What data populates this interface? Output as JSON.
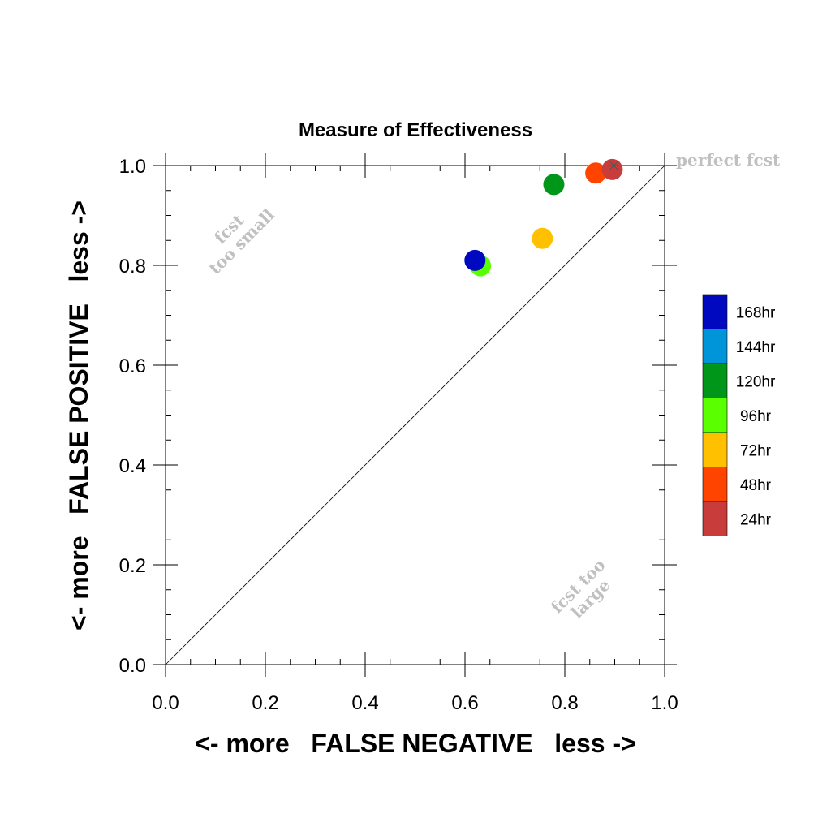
{
  "chart_data": {
    "type": "scatter",
    "title": "Measure of Effectiveness",
    "xlabel": "<- more   FALSE NEGATIVE   less ->",
    "ylabel": "<- more   FALSE POSITIVE   less ->",
    "xlim": [
      0,
      1
    ],
    "ylim": [
      0,
      1
    ],
    "xticks": [
      "0.0",
      "0.2",
      "0.4",
      "0.6",
      "0.8",
      "1.0"
    ],
    "yticks": [
      "0.0",
      "0.2",
      "0.4",
      "0.6",
      "0.8",
      "1.0"
    ],
    "grid": false,
    "legend_position": "right",
    "diagonal_line": true,
    "annotations": [
      {
        "text": "perfect fcst"
      },
      {
        "text": "fcst too small"
      },
      {
        "text": "fcst too large"
      }
    ],
    "series": [
      {
        "name": "168hr",
        "color": "#0008c0",
        "x": 0.62,
        "y": 0.81
      },
      {
        "name": "144hr",
        "color": "#0094d8",
        "x": null,
        "y": null
      },
      {
        "name": "120hr",
        "color": "#00961a",
        "x": 0.778,
        "y": 0.962
      },
      {
        "name": "96hr",
        "color": "#5aff00",
        "x": 0.631,
        "y": 0.799
      },
      {
        "name": "72hr",
        "color": "#ffc000",
        "x": 0.755,
        "y": 0.854
      },
      {
        "name": "48hr",
        "color": "#ff4400",
        "x": 0.862,
        "y": 0.985
      },
      {
        "name": "24hr",
        "color": "#c83c3c",
        "x": 0.895,
        "y": 0.992
      }
    ]
  }
}
